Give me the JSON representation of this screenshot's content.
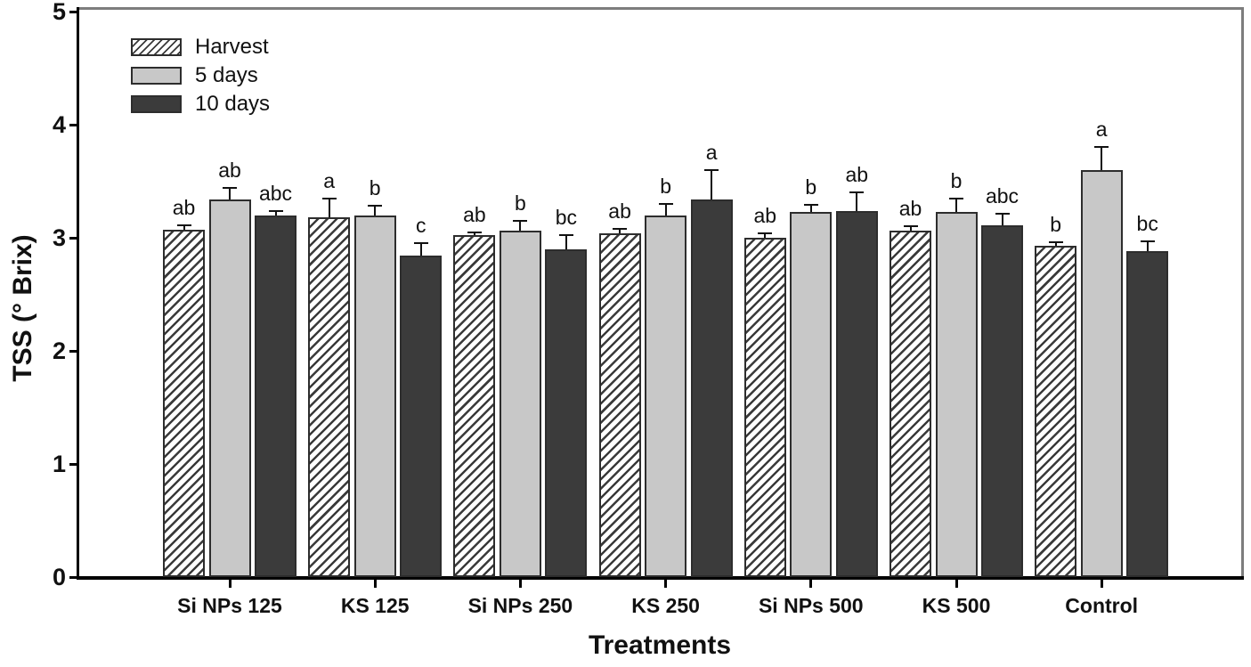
{
  "chart_data": {
    "type": "bar",
    "title": "",
    "xlabel": "Treatments",
    "ylabel": "TSS (° Brix)",
    "ylim": [
      0,
      5
    ],
    "yticks": [
      0,
      1,
      2,
      3,
      4,
      5
    ],
    "grid": false,
    "legend_position": "top-left",
    "error_bars": "upper, with caps",
    "categories": [
      "Si NPs 125",
      "KS 125",
      "Si NPs 250",
      "KS 250",
      "Si NPs 500",
      "KS 500",
      "Control"
    ],
    "series": [
      {
        "name": "Harvest",
        "style": "hatched",
        "values": [
          3.07,
          3.18,
          3.02,
          3.04,
          3.0,
          3.06,
          2.93
        ],
        "errors": [
          0.04,
          0.17,
          0.03,
          0.04,
          0.04,
          0.04,
          0.03
        ],
        "letters": [
          "ab",
          "a",
          "ab",
          "ab",
          "ab",
          "ab",
          "b"
        ]
      },
      {
        "name": "5 days",
        "style": "solid",
        "color": "#c8c8c8",
        "values": [
          3.34,
          3.2,
          3.06,
          3.2,
          3.23,
          3.23,
          3.6
        ],
        "errors": [
          0.1,
          0.08,
          0.09,
          0.1,
          0.06,
          0.12,
          0.2
        ],
        "letters": [
          "ab",
          "b",
          "b",
          "b",
          "b",
          "b",
          "a"
        ]
      },
      {
        "name": "10 days",
        "style": "solid",
        "color": "#3b3b3b",
        "values": [
          3.2,
          2.84,
          2.9,
          3.34,
          3.24,
          3.11,
          2.88
        ],
        "errors": [
          0.04,
          0.11,
          0.12,
          0.26,
          0.16,
          0.1,
          0.09
        ],
        "letters": [
          "abc",
          "c",
          "bc",
          "a",
          "ab",
          "abc",
          "bc"
        ]
      }
    ],
    "colors": {
      "hatch_line": "#3a3a3a",
      "light_bar": "#c8c8c8",
      "dark_bar": "#3b3b3b",
      "axis": "#000000",
      "frame": "#7d7d7d"
    }
  }
}
